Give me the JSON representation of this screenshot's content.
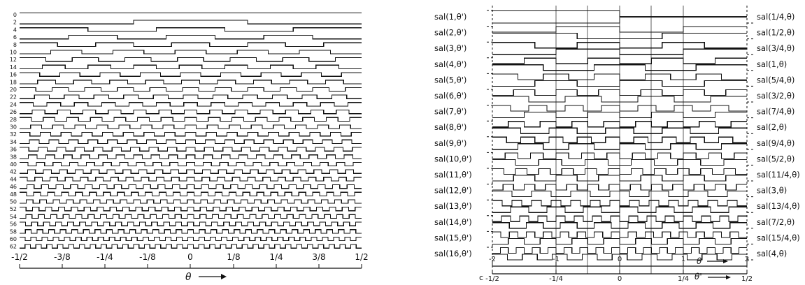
{
  "left_panel": {
    "row_labels": [
      "0",
      "2",
      "4",
      "6",
      "8",
      "10",
      "12",
      "14",
      "16",
      "18",
      "20",
      "22",
      "24",
      "26",
      "28",
      "30",
      "32",
      "34",
      "36",
      "38",
      "40",
      "42",
      "44",
      "46",
      "48",
      "50",
      "52",
      "54",
      "56",
      "58",
      "60",
      "62"
    ],
    "x_ticks": [
      "-1/2",
      "-3/8",
      "-1/4",
      "-1/8",
      "0",
      "1/8",
      "1/4",
      "3/8",
      "1/2"
    ],
    "x_axis_label": "θ"
  },
  "right_panel": {
    "left_labels": [
      "sal(1,θ')",
      "sal(2,θ')",
      "sal(3,θ')",
      "sal(4,θ')",
      "sal(5,θ')",
      "sal(6,θ')",
      "sal(7,θ')",
      "sal(8,θ')",
      "sal(9,θ')",
      "sal(10,θ')",
      "sal(11,θ')",
      "sal(12,θ')",
      "sal(13,θ')",
      "sal(14,θ')",
      "sal(15,θ')",
      "sal(16,θ')"
    ],
    "right_labels": [
      "sal(1/4,θ)",
      "sal(1/2,θ)",
      "sal(3/4,θ)",
      "sal(1,θ)",
      "sal(5/4,θ)",
      "sal(3/2,θ)",
      "sal(7/4,θ)",
      "sal(2,θ)",
      "sal(9/4,θ)",
      "sal(5/2,θ)",
      "sal(11/4,θ)",
      "sal(3,θ)",
      "sal(13/4,θ)",
      "sal(7/2,θ)",
      "sal(15/4,θ)",
      "sal(4,θ)"
    ],
    "theta_ticks": [
      "-2",
      "-1",
      "0",
      "1",
      "2"
    ],
    "theta_label": "θ",
    "theta_prime_ticks": [
      "-1/2",
      "-1/4",
      "0",
      "1/4",
      "1/2"
    ],
    "theta_prime_label": "θ'",
    "panel_letter": "c"
  }
}
